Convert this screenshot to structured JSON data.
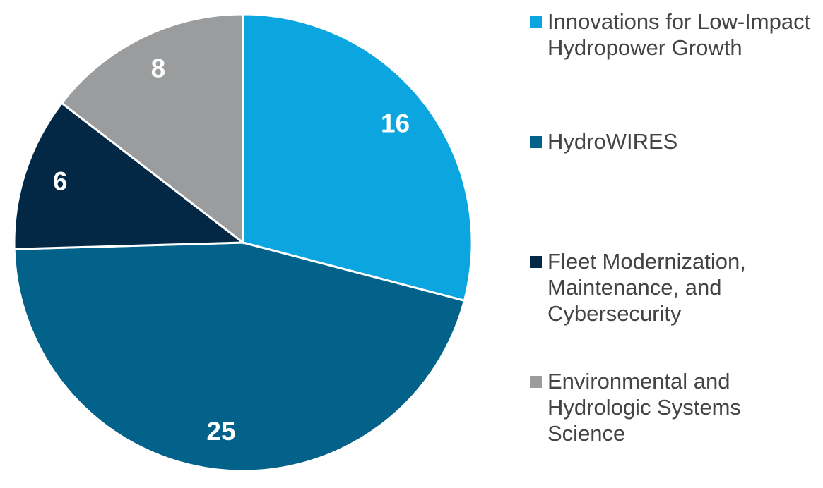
{
  "chart_data": {
    "type": "pie",
    "categories": [
      "Innovations for Low-Impact Hydropower Growth",
      "HydroWIRES",
      "Fleet Modernization, Maintenance, and Cybersecurity",
      "Environmental and Hydrologic Systems Science"
    ],
    "values": [
      16,
      25,
      6,
      8
    ],
    "colors": [
      "#0ba5df",
      "#02628a",
      "#022846",
      "#9a9c9d"
    ]
  }
}
